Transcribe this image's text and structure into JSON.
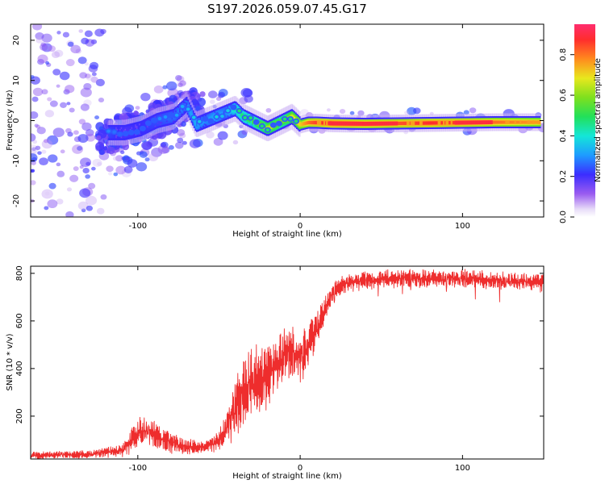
{
  "figure_title": "S197.2026.059.07.45.G17",
  "chart_data": [
    {
      "type": "heatmap",
      "title": "S197.2026.059.07.45.G17",
      "xlabel": "Height of straight line (km)",
      "ylabel": "Frequency (Hz)",
      "xlim": [
        -166,
        150
      ],
      "ylim": [
        -24,
        24
      ],
      "x_ticks": [
        "-100",
        "0",
        "100"
      ],
      "y_ticks": [
        "-20",
        "-10",
        "0",
        "10",
        "20"
      ],
      "colorbar": {
        "label": "Normalized spectral amplitude",
        "range": [
          0,
          0.95
        ],
        "ticks": [
          "0.0",
          "0.2",
          "0.4",
          "0.6",
          "0.8"
        ]
      },
      "ridge": {
        "x": [
          -118,
          -108,
          -98,
          -88,
          -78,
          -70,
          -64,
          -58,
          -52,
          -46,
          -40,
          -35,
          -30,
          -25,
          -20,
          -15,
          -10,
          -5,
          0,
          5,
          10,
          20,
          40,
          60,
          80,
          100,
          120,
          148
        ],
        "freq": [
          -3,
          -3,
          -2,
          0,
          1,
          4,
          -1,
          0,
          1,
          2,
          3,
          1,
          0,
          -1,
          -2,
          -1,
          0,
          1,
          -1,
          -0.5,
          -0.5,
          -0.7,
          -0.8,
          -0.7,
          -0.6,
          -0.5,
          -0.4,
          -0.4
        ],
        "amplitude": [
          0.25,
          0.2,
          0.22,
          0.25,
          0.28,
          0.3,
          0.35,
          0.3,
          0.35,
          0.3,
          0.45,
          0.5,
          0.55,
          0.6,
          0.7,
          0.65,
          0.6,
          0.7,
          0.75,
          0.85,
          0.9,
          0.95,
          0.9,
          0.88,
          0.92,
          0.9,
          0.85,
          0.8
        ]
      }
    },
    {
      "type": "line",
      "xlabel": "Height of straight line (km)",
      "ylabel": "SNR (10 * v/v)",
      "xlim": [
        -166,
        150
      ],
      "ylim": [
        20,
        830
      ],
      "x_ticks": [
        "-100",
        "0",
        "100"
      ],
      "y_ticks": [
        "200",
        "400",
        "600",
        "800"
      ],
      "series": [
        {
          "name": "SNR",
          "color": "#ee2d2d",
          "envelope_x": [
            -166,
            -130,
            -110,
            -105,
            -100,
            -95,
            -90,
            -80,
            -70,
            -60,
            -52,
            -45,
            -40,
            -35,
            -30,
            -25,
            -20,
            -15,
            -10,
            -5,
            0,
            5,
            10,
            15,
            20,
            25,
            30,
            40,
            60,
            80,
            100,
            120,
            140,
            150
          ],
          "envelope_mean": [
            35,
            40,
            55,
            90,
            130,
            140,
            120,
            90,
            70,
            70,
            90,
            150,
            230,
            300,
            340,
            350,
            380,
            420,
            450,
            470,
            440,
            500,
            560,
            650,
            720,
            750,
            760,
            770,
            780,
            775,
            780,
            770,
            765,
            760
          ],
          "envelope_amp": [
            15,
            15,
            25,
            45,
            60,
            60,
            55,
            45,
            30,
            25,
            35,
            70,
            110,
            140,
            140,
            130,
            130,
            120,
            120,
            110,
            100,
            90,
            70,
            50,
            40,
            35,
            35,
            35,
            35,
            35,
            35,
            35,
            35,
            35
          ]
        }
      ]
    }
  ]
}
